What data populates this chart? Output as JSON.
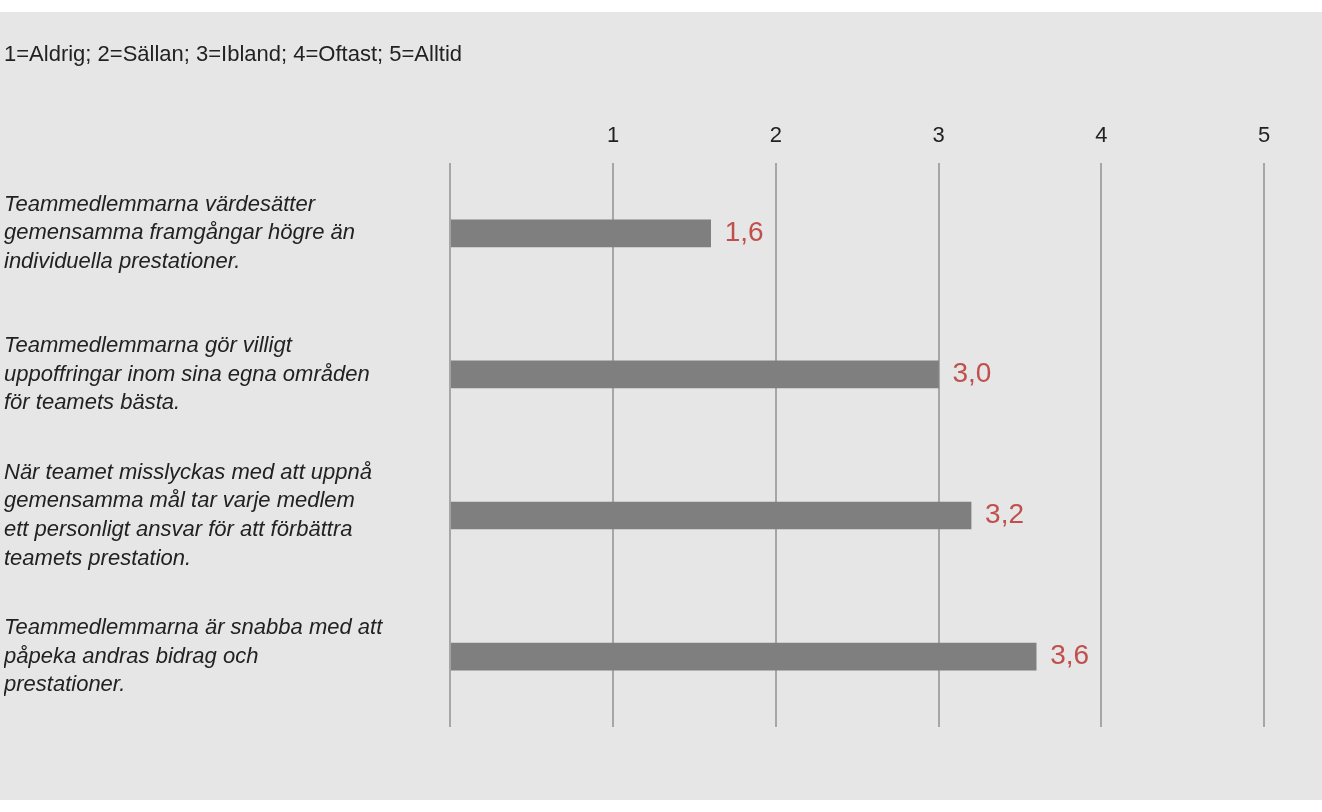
{
  "chart_data": {
    "type": "bar",
    "orientation": "horizontal",
    "title": "1=Aldrig; 2=Sällan; 3=Ibland; 4=Oftast; 5=Alltid",
    "categories": [
      "Teammedlemmarna värdesätter gemensamma framgångar högre än individuella prestationer.",
      "Teammedlemmarna gör villigt uppoffringar inom sina egna områden för teamets bästa.",
      "När teamet misslyckas med att uppnå gemensamma mål tar varje medlem ett personligt ansvar för att förbättra teamets prestation.",
      "Teammedlemmarna är snabba med att påpeka andras bidrag och prestationer."
    ],
    "values": [
      1.6,
      3.0,
      3.2,
      3.6
    ],
    "value_labels": [
      "1,6",
      "3,0",
      "3,2",
      "3,6"
    ],
    "color": "#7f7f7f",
    "xlim": [
      0,
      5
    ],
    "xticks": [
      {
        "value": 0,
        "label": null
      },
      1,
      2,
      3,
      4,
      5
    ],
    "grid": "x",
    "legend": false
  }
}
